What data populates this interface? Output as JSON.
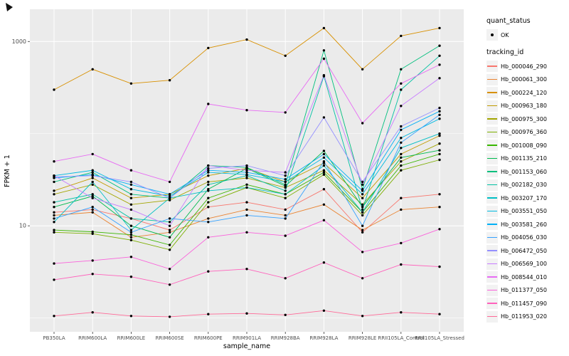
{
  "axes": {
    "y_title": "FPKM + 1",
    "x_title": "sample_name",
    "y_ticks": [
      {
        "label": "1000",
        "value": 1000
      },
      {
        "label": "10",
        "value": 10
      }
    ]
  },
  "legend": {
    "quant_status_title": "quant_status",
    "quant_status_items": [
      "OK"
    ],
    "tracking_id_title": "tracking_id"
  },
  "chart_data": {
    "type": "line",
    "title": "",
    "xlabel": "sample_name",
    "ylabel": "FPKM + 1",
    "y_scale": "log10",
    "ylim_log10": [
      -0.15,
      3.35
    ],
    "y_major_gridlines": [
      10,
      1000
    ],
    "y_minor_gridlines": [
      1,
      100
    ],
    "grid": true,
    "legend_position": "right",
    "panel_background": "#EBEBEB",
    "grid_color": "#FFFFFF",
    "point_color": "#000000",
    "categories": [
      "PB350LA",
      "RRIM600LA",
      "RRIM600LE",
      "RRIM600SE",
      "RRIM600PE",
      "RRIM901LA",
      "RRIM928BA",
      "RRIM928LA",
      "RRIM928LE",
      "RRII105LA_Control",
      "RRII105LA_Stressed"
    ],
    "series": [
      {
        "name": "Hb_000046_290",
        "color": "#F8766D",
        "values": [
          14,
          15,
          12,
          9,
          16,
          18,
          15,
          25,
          8.5,
          20,
          22
        ]
      },
      {
        "name": "Hb_000061_300",
        "color": "#EA8331",
        "values": [
          13,
          14,
          7.5,
          8.5,
          12,
          15,
          13,
          17,
          9,
          15,
          16
        ]
      },
      {
        "name": "Hb_000224_120",
        "color": "#D89000",
        "values": [
          300,
          500,
          350,
          380,
          850,
          1050,
          700,
          1400,
          500,
          1150,
          1400
        ]
      },
      {
        "name": "Hb_000963_180",
        "color": "#C09B00",
        "values": [
          24,
          33,
          20,
          22,
          35,
          42,
          30,
          48,
          20,
          60,
          95
        ]
      },
      {
        "name": "Hb_000975_300",
        "color": "#A3A500",
        "values": [
          22,
          28,
          17,
          19,
          30,
          33,
          26,
          40,
          17,
          50,
          78
        ]
      },
      {
        "name": "Hb_000976_360",
        "color": "#7CAE00",
        "values": [
          8.5,
          8.2,
          7,
          5.5,
          18,
          26,
          20,
          36,
          13,
          40,
          52
        ]
      },
      {
        "name": "Hb_001008_090",
        "color": "#39B600",
        "values": [
          9,
          8.6,
          8,
          6.2,
          20,
          28,
          22,
          38,
          14,
          45,
          60
        ]
      },
      {
        "name": "Hb_001135_210",
        "color": "#00BB4E",
        "values": [
          16,
          21,
          10,
          7.5,
          25,
          42,
          27,
          65,
          16,
          55,
          66
        ]
      },
      {
        "name": "Hb_001153_060",
        "color": "#00BF7D",
        "values": [
          30,
          38,
          22,
          20,
          45,
          43,
          28,
          800,
          25,
          500,
          900
        ]
      },
      {
        "name": "Hb_002182_030",
        "color": "#00C1A3",
        "values": [
          18,
          22,
          12,
          11,
          28,
          35,
          24,
          420,
          15,
          300,
          700
        ]
      },
      {
        "name": "Hb_003207_170",
        "color": "#00BFC4",
        "values": [
          11,
          30,
          9,
          20,
          24,
          26,
          22,
          45,
          14,
          70,
          100
        ]
      },
      {
        "name": "Hb_003551_050",
        "color": "#00BAE0",
        "values": [
          35,
          40,
          25,
          21,
          38,
          36,
          30,
          55,
          22,
          90,
          145
        ]
      },
      {
        "name": "Hb_003581_260",
        "color": "#00B0F6",
        "values": [
          33,
          36,
          28,
          22,
          40,
          38,
          32,
          60,
          24,
          110,
          175
        ]
      },
      {
        "name": "Hb_004056_030",
        "color": "#35A2FF",
        "values": [
          12,
          16,
          8.5,
          12,
          11,
          13,
          12,
          50,
          10,
          80,
          160
        ]
      },
      {
        "name": "Hb_006472_050",
        "color": "#9590FF",
        "values": [
          34,
          35,
          30,
          20,
          42,
          45,
          35,
          150,
          30,
          120,
          190
        ]
      },
      {
        "name": "Hb_006569_100",
        "color": "#C77CFF",
        "values": [
          35,
          20,
          15,
          10,
          45,
          40,
          38,
          430,
          28,
          200,
          400
        ]
      },
      {
        "name": "Hb_008544_010",
        "color": "#E76BF3",
        "values": [
          50,
          60,
          40,
          30,
          210,
          180,
          170,
          650,
          130,
          350,
          560
        ]
      },
      {
        "name": "Hb_011377_050",
        "color": "#FA62DB",
        "values": [
          3.9,
          4.2,
          4.6,
          3.4,
          7.5,
          8.5,
          7.8,
          11.5,
          5.2,
          6.5,
          9.2
        ]
      },
      {
        "name": "Hb_011457_090",
        "color": "#FF62BC",
        "values": [
          2.6,
          3.0,
          2.8,
          2.3,
          3.2,
          3.4,
          2.7,
          4.0,
          2.7,
          3.8,
          3.6
        ]
      },
      {
        "name": "Hb_011953_020",
        "color": "#FF6A98",
        "values": [
          1.05,
          1.15,
          1.05,
          1.03,
          1.1,
          1.12,
          1.08,
          1.2,
          1.05,
          1.15,
          1.1
        ]
      }
    ]
  }
}
